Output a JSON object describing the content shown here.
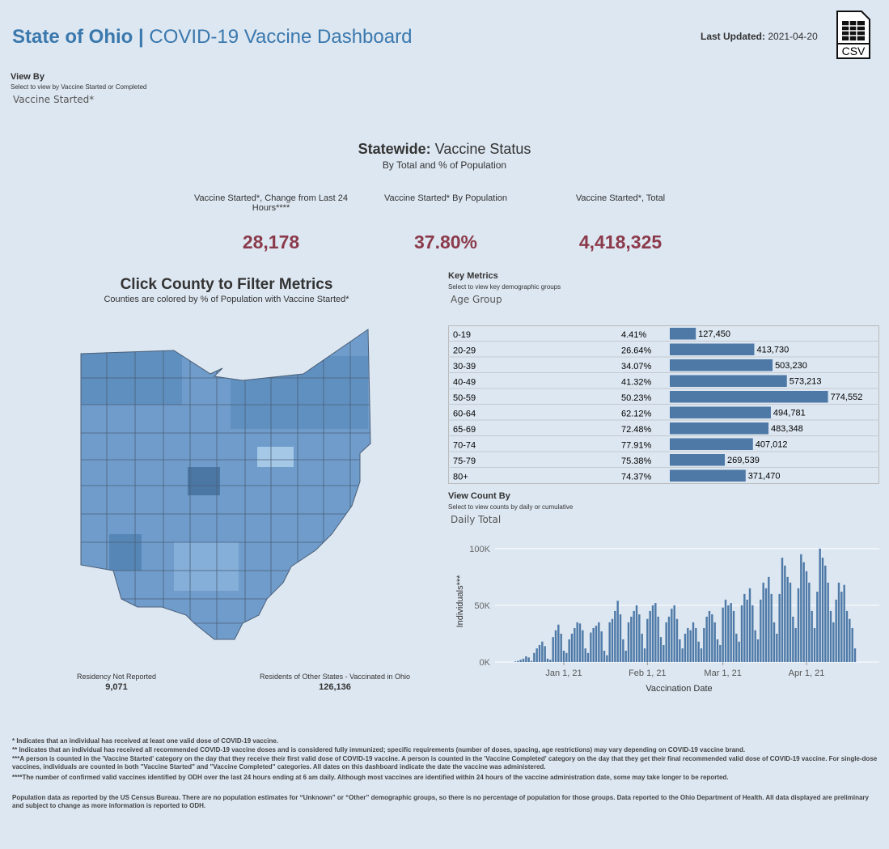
{
  "header": {
    "title_bold": "State of Ohio |",
    "title": "COVID-19 Vaccine Dashboard",
    "updated_label": "Last Updated:",
    "updated_date": "2021-04-20",
    "csv": "CSV"
  },
  "view_by": {
    "title": "View By",
    "subtitle": "Select to view by Vaccine Started or Completed",
    "selection": "Vaccine Started*"
  },
  "statewide": {
    "title_bold": "Statewide:",
    "title": "Vaccine Status",
    "subtitle": "By Total and % of Population",
    "kpis": [
      {
        "label": "Vaccine Started*, Change from Last 24 Hours****",
        "value": "28,178"
      },
      {
        "label": "Vaccine Started* By Population",
        "value": "37.80%"
      },
      {
        "label": "Vaccine Started*, Total",
        "value": "4,418,325"
      }
    ]
  },
  "map": {
    "title": "Click County to Filter Metrics",
    "subtitle": "Counties are colored by % of Population with Vaccine Started*",
    "not_reported_label": "Residency Not Reported",
    "not_reported_value": "9,071",
    "other_states_label": "Residents of Other States - Vaccinated in Ohio",
    "other_states_value": "126,136"
  },
  "key_metrics": {
    "title": "Key Metrics",
    "subtitle": "Select to view key demographic groups",
    "selection": "Age Group",
    "xlim": [
      0,
      800000
    ],
    "color": "#4e79a7",
    "rows": [
      {
        "label": "0-19",
        "percent": "4.41%",
        "value": 127450,
        "value_label": "127,450"
      },
      {
        "label": "20-29",
        "percent": "26.64%",
        "value": 413730,
        "value_label": "413,730"
      },
      {
        "label": "30-39",
        "percent": "34.07%",
        "value": 503230,
        "value_label": "503,230"
      },
      {
        "label": "40-49",
        "percent": "41.32%",
        "value": 573213,
        "value_label": "573,213"
      },
      {
        "label": "50-59",
        "percent": "50.23%",
        "value": 774552,
        "value_label": "774,552"
      },
      {
        "label": "60-64",
        "percent": "62.12%",
        "value": 494781,
        "value_label": "494,781"
      },
      {
        "label": "65-69",
        "percent": "72.48%",
        "value": 483348,
        "value_label": "483,348"
      },
      {
        "label": "70-74",
        "percent": "77.91%",
        "value": 407012,
        "value_label": "407,012"
      },
      {
        "label": "75-79",
        "percent": "75.38%",
        "value": 269539,
        "value_label": "269,539"
      },
      {
        "label": "80+",
        "percent": "74.37%",
        "value": 371470,
        "value_label": "371,470"
      }
    ]
  },
  "view_count": {
    "title": "View Count By",
    "subtitle": "Select to view counts by daily or cumulative",
    "selection": "Daily Total"
  },
  "chart_data": {
    "type": "bar",
    "y_label": "Individuals***",
    "x_label": "Vaccination Date",
    "color": "#4e79a7",
    "grid": true,
    "xlim": [
      -7.5,
      135
    ],
    "ylim": [
      0,
      107000
    ],
    "xticks": [
      {
        "value": 18,
        "label": "Jan 1, 21"
      },
      {
        "value": 49,
        "label": "Feb 1, 21"
      },
      {
        "value": 77,
        "label": "Mar 1, 21"
      },
      {
        "value": 108,
        "label": "Apr 1, 21"
      }
    ],
    "yticks": [
      {
        "value": 0,
        "label": "0K"
      },
      {
        "value": 50000,
        "label": "50K"
      },
      {
        "value": 100000,
        "label": "100K"
      }
    ],
    "values": [
      500,
      1000,
      2000,
      3000,
      5000,
      4000,
      1000,
      8000,
      12000,
      15000,
      18000,
      14000,
      3000,
      2000,
      22000,
      28000,
      33000,
      25000,
      10000,
      8000,
      20000,
      25000,
      30000,
      35000,
      34000,
      28000,
      12000,
      8000,
      26000,
      30000,
      32000,
      35000,
      27000,
      10000,
      6000,
      35000,
      38000,
      45000,
      54000,
      42000,
      20000,
      10000,
      35000,
      40000,
      45000,
      50000,
      42000,
      25000,
      12000,
      38000,
      45000,
      50000,
      52000,
      40000,
      22000,
      15000,
      35000,
      40000,
      47000,
      50000,
      38000,
      20000,
      12000,
      25000,
      30000,
      28000,
      35000,
      30000,
      18000,
      12000,
      30000,
      40000,
      45000,
      42000,
      35000,
      20000,
      15000,
      48000,
      55000,
      50000,
      52000,
      45000,
      25000,
      18000,
      50000,
      60000,
      55000,
      65000,
      50000,
      28000,
      20000,
      55000,
      70000,
      65000,
      75000,
      60000,
      35000,
      25000,
      60000,
      92000,
      85000,
      75000,
      70000,
      40000,
      30000,
      65000,
      95000,
      88000,
      80000,
      70000,
      45000,
      30000,
      62000,
      100000,
      92000,
      85000,
      70000,
      45000,
      35000,
      55000,
      70000,
      62000,
      68000,
      45000,
      38000,
      30000,
      12000
    ]
  },
  "footer": {
    "notes": [
      "* Indicates that an individual has received at least one valid dose of COVID-19 vaccine.",
      "** Indicates that an individual has received all recommended COVID-19 vaccine doses and is considered fully immunized; specific requirements (number of doses, spacing, age restrictions) may vary depending on COVID-19 vaccine brand.",
      "***A person is counted in the 'Vaccine Started' category on the day that they receive their first valid dose of COVID-19 vaccine.  A person is counted in the 'Vaccine Completed' category on the day that they get their final recommended valid dose of COVID-19 vaccine. For single-dose vaccines, individuals are counted in both \"Vaccine Started\" and \"Vaccine Completed\" categories. All dates on this dashboard indicate the date the vaccine was administered.",
      "****The number of confirmed valid vaccines identified by ODH over the last 24 hours ending at 6 am daily. Although most vaccines are identified within 24 hours of the vaccine administration date, some may take longer to be reported."
    ],
    "population_note": "Population data as reported by the US Census Bureau. There are no population estimates for “Unknown” or “Other” demographic groups, so there is no percentage of population for those groups.  Data reported to the Ohio Department of Health.  All data displayed are preliminary and subject to change as more information is reported to ODH."
  }
}
